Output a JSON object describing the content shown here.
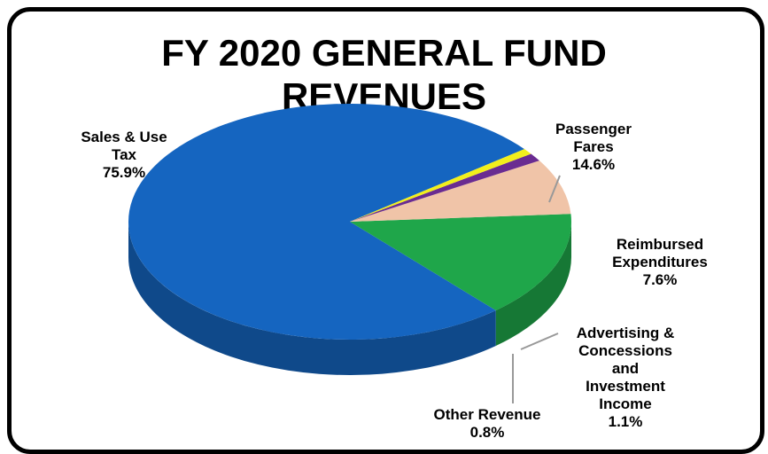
{
  "chart_data": {
    "type": "pie",
    "title_lines": [
      "FY 2020 GENERAL FUND",
      "REVENUES"
    ],
    "slices": [
      {
        "name_lines": [
          "Sales & Use",
          "Tax"
        ],
        "value": 75.9,
        "value_label": "75.9%",
        "color": "#1565c0"
      },
      {
        "name_lines": [
          "Passenger",
          "Fares"
        ],
        "value": 14.6,
        "value_label": "14.6%",
        "color": "#1fa64a"
      },
      {
        "name_lines": [
          "Reimbursed",
          "Expenditures"
        ],
        "value": 7.6,
        "value_label": "7.6%",
        "color": "#f0c4a8"
      },
      {
        "name_lines": [
          "Advertising &",
          "Concessions",
          "and",
          "Investment",
          "Income"
        ],
        "value": 1.1,
        "value_label": "1.1%",
        "color": "#6a2c91"
      },
      {
        "name_lines": [
          "Other Revenue"
        ],
        "value": 0.8,
        "value_label": "0.8%",
        "color": "#f2ef1c"
      }
    ]
  }
}
